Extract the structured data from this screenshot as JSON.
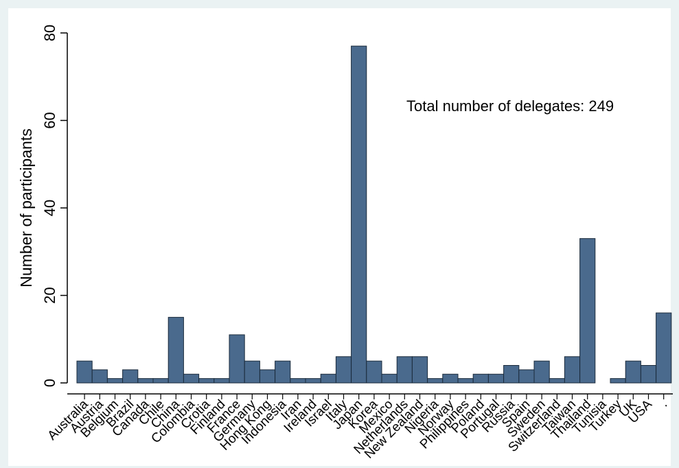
{
  "chart_data": {
    "type": "bar",
    "title": "",
    "xlabel": "",
    "ylabel": "Number of participants",
    "ylim": [
      0,
      80
    ],
    "yticks": [
      0,
      20,
      40,
      60,
      80
    ],
    "grid": false,
    "annotation": "Total number of delegates: 249",
    "categories": [
      "Australia",
      "Austria",
      "Belgium",
      "Brazil",
      "Canada",
      "Chile",
      "China",
      "Colombia",
      "Crotia",
      "Finland",
      "France",
      "Germany",
      "Hong Kong",
      "Indonesia",
      "Iran",
      "Ireland",
      "Israel",
      "Italy",
      "Japan",
      "Korea",
      "Mexico",
      "Netherlands",
      "New Zealand",
      "Nigeria",
      "Norway",
      "Philippines",
      "Poland",
      "Portugal",
      "Russia",
      "Spain",
      "Sweden",
      "Switzerland",
      "Taiwan",
      "Thailand",
      "Tunisia",
      "Turkey",
      "UK",
      "USA",
      "."
    ],
    "values": [
      5,
      3,
      1,
      3,
      1,
      1,
      15,
      2,
      1,
      1,
      11,
      5,
      3,
      5,
      1,
      1,
      2,
      6,
      77,
      5,
      2,
      6,
      6,
      1,
      2,
      1,
      2,
      2,
      4,
      3,
      5,
      1,
      6,
      33,
      0,
      1,
      5,
      4,
      16
    ]
  },
  "colors": {
    "background_outer": "#eaf2f3",
    "plot_background": "#ffffff",
    "bar_fill": "#4a6a8d",
    "bar_stroke": "#1a2a3a"
  }
}
